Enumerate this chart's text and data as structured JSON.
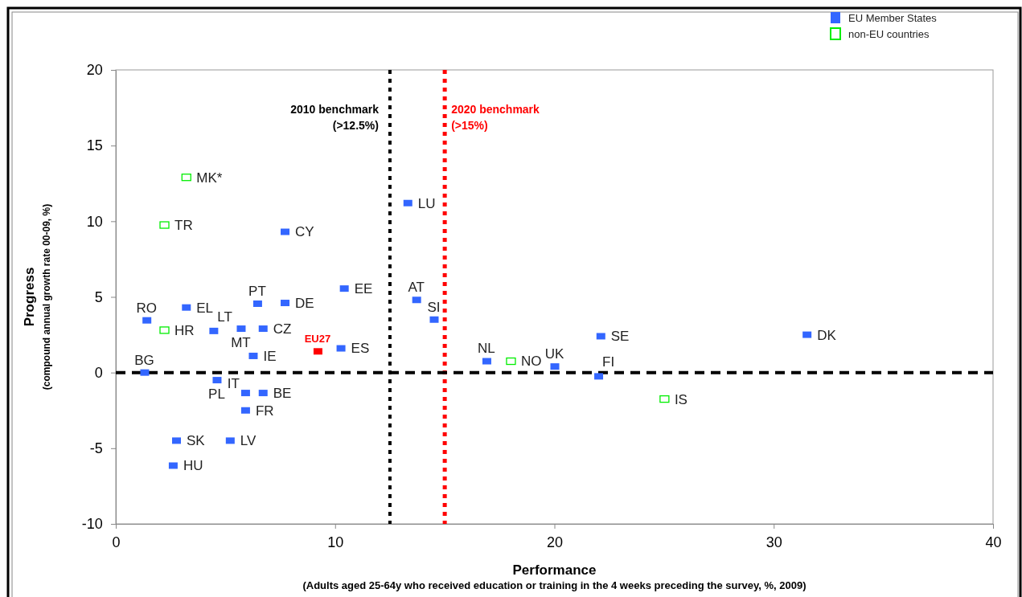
{
  "chart_data": {
    "type": "scatter",
    "xlabel": "Performance\n(Adults aged 25-64y who received education or training in the 4 weeks preceding the survey, %, 2009)",
    "ylabel": "Progress\n(compound annual growth rate 00-09, %)",
    "xlim": [
      0,
      40
    ],
    "xticks": [
      0,
      10,
      20,
      30,
      40
    ],
    "ylim": [
      -10,
      20
    ],
    "yticks": [
      -10,
      -5,
      0,
      5,
      10,
      15,
      20
    ],
    "grid": false,
    "legend": "top right",
    "marker": "square",
    "series": [
      {
        "name": "EU Member States",
        "color": "#3366ff",
        "x": [
          13.3,
          10.4,
          6.45,
          7.7,
          3.2,
          1.4,
          4.45,
          5.7,
          6.7,
          10.25,
          6.25,
          1.3,
          4.6,
          5.9,
          6.7,
          5.9,
          2.75,
          5.2,
          2.6,
          13.7,
          14.5,
          16.9,
          20.0,
          22.1,
          22.0,
          31.5,
          7.7
        ],
        "values": [
          11.2,
          5.55,
          4.55,
          4.6,
          4.3,
          3.45,
          2.75,
          2.9,
          2.9,
          1.6,
          1.1,
          0,
          -0.5,
          -1.35,
          -1.35,
          -2.5,
          -4.5,
          -4.5,
          -6.15,
          4.8,
          3.5,
          0.75,
          0.4,
          2.4,
          -0.25,
          2.5,
          9.3
        ]
      },
      {
        "name": "non-EU countries",
        "color": "#00ee00",
        "x": [
          3.2,
          2.2,
          2.2,
          18.0,
          25.0
        ],
        "values": [
          12.9,
          9.75,
          2.8,
          0.75,
          -1.75
        ]
      },
      {
        "color": "#ff0000",
        "x": [
          9.2
        ],
        "values": [
          1.4
        ]
      }
    ],
    "ref_lines": [
      {
        "axis": "x",
        "value": 12.5,
        "label": "2010 benchmark\n(>12.5%)",
        "color": "#000000",
        "line_style": "dotted"
      },
      {
        "axis": "x",
        "value": 15,
        "label": "2020 benchmark\n(>15%)",
        "color": "#ff0000",
        "line_style": "dotted"
      },
      {
        "axis": "y",
        "value": 0,
        "color": "#000000",
        "line_style": "dashed"
      }
    ],
    "annotations": [
      {
        "text": "MK*",
        "x": 3.2,
        "y": 12.9
      },
      {
        "text": "TR",
        "x": 2.2,
        "y": 9.75
      },
      {
        "text": "CY",
        "x": 7.7,
        "y": 9.3
      },
      {
        "text": "LU",
        "x": 13.3,
        "y": 11.2
      },
      {
        "text": "EE",
        "x": 10.4,
        "y": 5.55
      },
      {
        "text": "PT",
        "x": 6.45,
        "y": 4.55
      },
      {
        "text": "DE",
        "x": 7.7,
        "y": 4.6
      },
      {
        "text": "EL",
        "x": 3.2,
        "y": 4.3
      },
      {
        "text": "RO",
        "x": 1.4,
        "y": 3.45
      },
      {
        "text": "HR",
        "x": 2.2,
        "y": 2.8
      },
      {
        "text": "LT",
        "x": 4.45,
        "y": 2.75
      },
      {
        "text": "MT",
        "x": 5.7,
        "y": 2.9
      },
      {
        "text": "CZ",
        "x": 6.7,
        "y": 2.9
      },
      {
        "text": "EU27",
        "x": 9.2,
        "y": 1.4
      },
      {
        "text": "ES",
        "x": 10.25,
        "y": 1.6
      },
      {
        "text": "IE",
        "x": 6.25,
        "y": 1.1
      },
      {
        "text": "BG",
        "x": 1.3,
        "y": 0
      },
      {
        "text": "PL",
        "x": 4.6,
        "y": -0.5
      },
      {
        "text": "IT",
        "x": 5.9,
        "y": -1.35
      },
      {
        "text": "BE",
        "x": 6.7,
        "y": -1.35
      },
      {
        "text": "FR",
        "x": 5.9,
        "y": -2.5
      },
      {
        "text": "SK",
        "x": 2.75,
        "y": -4.5
      },
      {
        "text": "LV",
        "x": 5.2,
        "y": -4.5
      },
      {
        "text": "HU",
        "x": 2.6,
        "y": -6.15
      },
      {
        "text": "AT",
        "x": 13.7,
        "y": 4.8
      },
      {
        "text": "SI",
        "x": 14.5,
        "y": 3.5
      },
      {
        "text": "NL",
        "x": 16.9,
        "y": 0.75
      },
      {
        "text": "NO",
        "x": 18.0,
        "y": 0.75
      },
      {
        "text": "UK",
        "x": 20.0,
        "y": 0.4
      },
      {
        "text": "SE",
        "x": 22.1,
        "y": 2.4
      },
      {
        "text": "FI",
        "x": 22.0,
        "y": -0.25
      },
      {
        "text": "IS",
        "x": 25.0,
        "y": -1.75
      },
      {
        "text": "DK",
        "x": 31.5,
        "y": 2.5
      }
    ]
  }
}
